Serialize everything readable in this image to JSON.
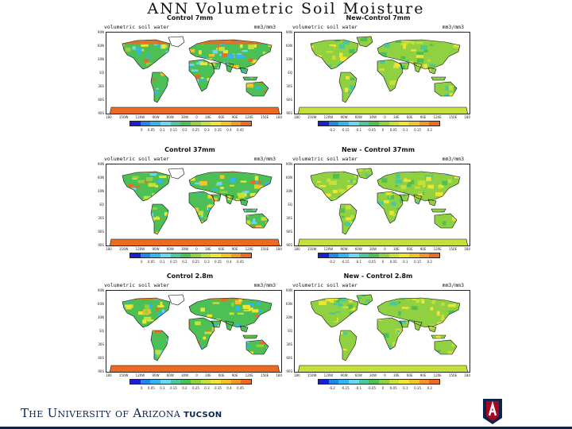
{
  "slide": {
    "title": "ANN Volumetric Soil Moisture"
  },
  "colorbar_colors": [
    "#1d1dd6",
    "#1e87e8",
    "#30b6f0",
    "#6fd6f2",
    "#49c99c",
    "#4cbf55",
    "#8fd140",
    "#c5e03a",
    "#f0e632",
    "#f5c22b",
    "#f2982a",
    "#ec6a22"
  ],
  "lat_labels": [
    "90N",
    "60N",
    "30N",
    "EQ",
    "30S",
    "60S",
    "90S"
  ],
  "lon_labels": [
    "180",
    "150W",
    "120W",
    "90W",
    "60W",
    "30W",
    "0",
    "30E",
    "60E",
    "90E",
    "120E",
    "150E",
    "180"
  ],
  "panels": [
    {
      "title": "Control 7mm",
      "variable": "volumetric soil water",
      "units": "mm3/mm3",
      "colorbar_labels": [
        "0",
        "0.05",
        "0.1",
        "0.15",
        "0.2",
        "0.25",
        "0.3",
        "0.35",
        "0.4",
        "0.45"
      ]
    },
    {
      "title": "New-Control 7mm",
      "variable": "volumetric soil water",
      "units": "mm3/mm3",
      "colorbar_labels": [
        "-0.2",
        "-0.15",
        "-0.1",
        "-0.05",
        "0",
        "0.05",
        "0.1",
        "0.15",
        "0.2"
      ]
    },
    {
      "title": "Control 37mm",
      "variable": "volumetric soil water",
      "units": "mm3/mm3",
      "colorbar_labels": [
        "0",
        "0.05",
        "0.1",
        "0.15",
        "0.2",
        "0.25",
        "0.3",
        "0.35",
        "0.4",
        "0.45"
      ]
    },
    {
      "title": "New - Control 37mm",
      "variable": "volumetric soil water",
      "units": "mm3/mm3",
      "colorbar_labels": [
        "-0.2",
        "-0.15",
        "-0.1",
        "-0.05",
        "0",
        "0.05",
        "0.1",
        "0.15",
        "0.2"
      ]
    },
    {
      "title": "Control 2.8m",
      "variable": "volumetric soil water",
      "units": "mm3/mm3",
      "colorbar_labels": [
        "0",
        "0.05",
        "0.1",
        "0.15",
        "0.2",
        "0.25",
        "0.3",
        "0.35",
        "0.4",
        "0.45"
      ]
    },
    {
      "title": "New - Control 2.8m",
      "variable": "volumetric soil water",
      "units": "mm3/mm3",
      "colorbar_labels": [
        "-0.2",
        "-0.15",
        "-0.1",
        "-0.05",
        "0",
        "0.05",
        "0.1",
        "0.15",
        "0.2"
      ]
    }
  ],
  "footer": {
    "university": "The University of Arizona",
    "city": "Tucson"
  }
}
